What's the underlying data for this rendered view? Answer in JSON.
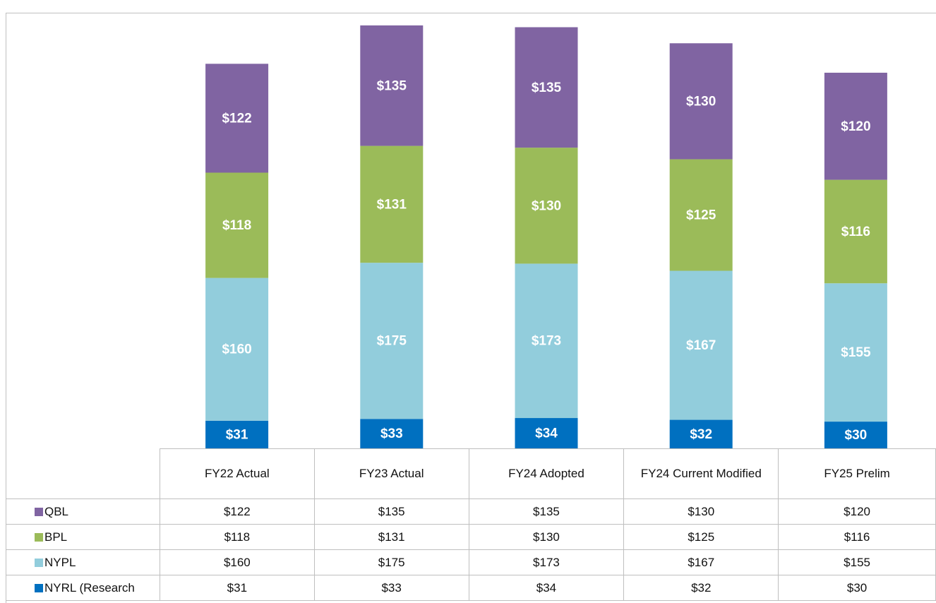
{
  "chart_data": {
    "type": "stacked_bar",
    "categories": [
      "FY22 Actual",
      "FY23 Actual",
      "FY24 Adopted",
      "FY24 Current Modified",
      "FY25 Prelim"
    ],
    "series": [
      {
        "name": "QBL",
        "color": "#8064a2",
        "values": [
          122,
          135,
          135,
          130,
          120
        ],
        "value_labels": [
          "$122",
          "$135",
          "$135",
          "$130",
          "$120"
        ]
      },
      {
        "name": "BPL",
        "color": "#9bbb59",
        "values": [
          118,
          131,
          130,
          125,
          116
        ],
        "value_labels": [
          "$118",
          "$131",
          "$130",
          "$125",
          "$116"
        ]
      },
      {
        "name": "NYPL",
        "color": "#92cddc",
        "values": [
          160,
          175,
          173,
          167,
          155
        ],
        "value_labels": [
          "$160",
          "$175",
          "$173",
          "$167",
          "$155"
        ]
      },
      {
        "name": "NYRL (Research",
        "color": "#0070c0",
        "values": [
          31,
          33,
          34,
          32,
          30
        ],
        "value_labels": [
          "$31",
          "$33",
          "$34",
          "$32",
          "$30"
        ]
      }
    ]
  }
}
